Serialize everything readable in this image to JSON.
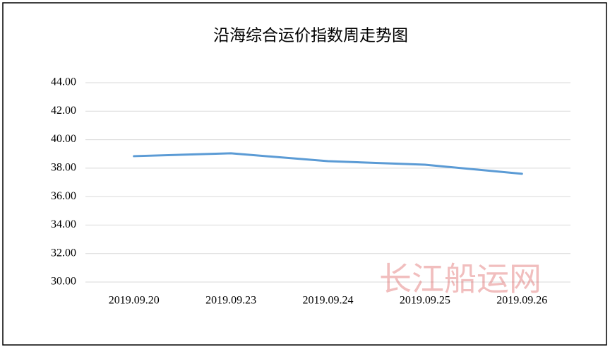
{
  "chart_data": {
    "type": "line",
    "title": "沿海综合运价指数周走势图",
    "categories": [
      "2019.09.20",
      "2019.09.23",
      "2019.09.24",
      "2019.09.25",
      "2019.09.26"
    ],
    "values": [
      38.84,
      39.04,
      38.49,
      38.24,
      37.6
    ],
    "color": "#5b9bd5",
    "ylim": [
      30,
      44
    ],
    "yticks": [
      {
        "value": 30,
        "label": "30.00"
      },
      {
        "value": 32,
        "label": "32.00"
      },
      {
        "value": 34,
        "label": "34.00"
      },
      {
        "value": 36,
        "label": "36.00"
      },
      {
        "value": 38,
        "label": "38.00"
      },
      {
        "value": 40,
        "label": "40.00"
      },
      {
        "value": 42,
        "label": "42.00"
      },
      {
        "value": 44,
        "label": "44.00"
      }
    ],
    "grid": true,
    "watermark": "长江船运网"
  }
}
